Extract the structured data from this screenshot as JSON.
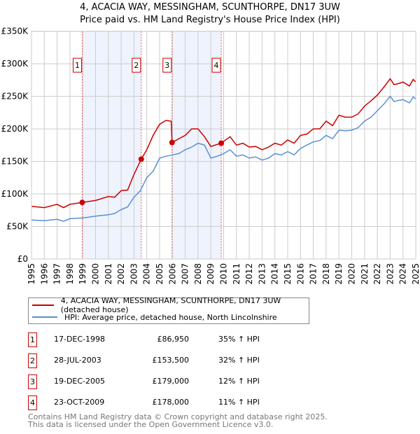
{
  "title": "4, ACACIA WAY, MESSINGHAM, SCUNTHORPE, DN17 3UW",
  "subtitle": "Price paid vs. HM Land Registry's House Price Index (HPI)",
  "colors": {
    "property": "#cc0000",
    "hpi": "#5b8fd4",
    "shade": "#eef3fd",
    "grid": "#cccccc"
  },
  "chart_data": {
    "type": "line",
    "title": "4, ACACIA WAY, MESSINGHAM, SCUNTHORPE, DN17 3UW",
    "xlim": [
      1995,
      2025
    ],
    "ylim": [
      0,
      350000
    ],
    "yticks": [
      {
        "v": 0,
        "label": "£0"
      },
      {
        "v": 50000,
        "label": "£50K"
      },
      {
        "v": 100000,
        "label": "£100K"
      },
      {
        "v": 150000,
        "label": "£150K"
      },
      {
        "v": 200000,
        "label": "£200K"
      },
      {
        "v": 250000,
        "label": "£250K"
      },
      {
        "v": 300000,
        "label": "£300K"
      },
      {
        "v": 350000,
        "label": "£350K"
      }
    ],
    "xticks": [
      1995,
      1996,
      1997,
      1998,
      1999,
      2000,
      2001,
      2002,
      2003,
      2004,
      2005,
      2006,
      2007,
      2008,
      2009,
      2010,
      2011,
      2012,
      2013,
      2014,
      2015,
      2016,
      2017,
      2018,
      2019,
      2020,
      2021,
      2022,
      2023,
      2024,
      2025
    ],
    "series": [
      {
        "name": "4, ACACIA WAY, MESSINGHAM, SCUNTHORPE, DN17 3UW (detached house)",
        "color": "#cc0000",
        "x": [
          1995,
          1996,
          1997,
          1997.5,
          1998,
          1998.96,
          2000,
          2001,
          2001.5,
          2002,
          2002.5,
          2003,
          2003.57,
          2004,
          2004.5,
          2005,
          2005.5,
          2005.9,
          2005.97,
          2006.5,
          2007,
          2007.5,
          2008,
          2008.5,
          2009,
          2009.81,
          2010.5,
          2011,
          2011.5,
          2012,
          2012.5,
          2013,
          2013.5,
          2014,
          2014.5,
          2015,
          2015.5,
          2016,
          2016.5,
          2017,
          2017.5,
          2018,
          2018.5,
          2019,
          2019.5,
          2020,
          2020.5,
          2021,
          2021.5,
          2022,
          2022.5,
          2023,
          2023.3,
          2023.7,
          2024,
          2024.5,
          2024.8,
          2025
        ],
        "y": [
          81000,
          79000,
          84000,
          79000,
          84000,
          86950,
          90000,
          96000,
          95000,
          105000,
          106000,
          130000,
          153500,
          168000,
          190000,
          207000,
          213000,
          212000,
          179000,
          185000,
          190000,
          200000,
          200000,
          188000,
          173000,
          178000,
          188000,
          175000,
          178000,
          172000,
          173000,
          168000,
          172000,
          178000,
          175000,
          183000,
          178000,
          190000,
          192000,
          200000,
          200000,
          212000,
          205000,
          221000,
          218000,
          218000,
          223000,
          235000,
          243000,
          252000,
          264000,
          277000,
          268000,
          270000,
          272000,
          266000,
          276000,
          272000
        ]
      },
      {
        "name": "HPI: Average price, detached house, North Lincolnshire",
        "color": "#5b8fd4",
        "x": [
          1995,
          1996,
          1997,
          1997.5,
          1998,
          1999,
          2000,
          2001,
          2001.5,
          2002,
          2002.5,
          2003,
          2003.5,
          2004,
          2004.5,
          2005,
          2005.5,
          2006,
          2006.5,
          2007,
          2007.5,
          2008,
          2008.5,
          2009,
          2009.5,
          2010,
          2010.5,
          2011,
          2011.5,
          2012,
          2012.5,
          2013,
          2013.5,
          2014,
          2014.5,
          2015,
          2015.5,
          2016,
          2016.5,
          2017,
          2017.5,
          2018,
          2018.5,
          2019,
          2019.5,
          2020,
          2020.5,
          2021,
          2021.5,
          2022,
          2022.5,
          2023,
          2023.3,
          2023.7,
          2024,
          2024.5,
          2024.8,
          2025
        ],
        "y": [
          60000,
          59000,
          61000,
          58000,
          62000,
          63000,
          66000,
          68000,
          70000,
          76000,
          80000,
          95000,
          105000,
          125000,
          135000,
          155000,
          158000,
          160000,
          162000,
          168000,
          172000,
          178000,
          175000,
          155000,
          158000,
          162000,
          168000,
          158000,
          160000,
          155000,
          157000,
          152000,
          155000,
          162000,
          160000,
          165000,
          160000,
          170000,
          175000,
          180000,
          182000,
          190000,
          185000,
          198000,
          197000,
          198000,
          202000,
          212000,
          218000,
          228000,
          238000,
          250000,
          242000,
          244000,
          245000,
          240000,
          249000,
          246000
        ]
      }
    ],
    "sales": [
      {
        "n": "1",
        "x": 1998.96,
        "date": "17-DEC-1998",
        "price": 86950,
        "price_label": "£86,950",
        "hpi": "35% ↑ HPI"
      },
      {
        "n": "2",
        "x": 2003.57,
        "date": "28-JUL-2003",
        "price": 153500,
        "price_label": "£153,500",
        "hpi": "32% ↑ HPI"
      },
      {
        "n": "3",
        "x": 2005.97,
        "date": "19-DEC-2005",
        "price": 179000,
        "price_label": "£179,000",
        "hpi": "12% ↑ HPI"
      },
      {
        "n": "4",
        "x": 2009.81,
        "date": "23-OCT-2009",
        "price": 178000,
        "price_label": "£178,000",
        "hpi": "11% ↑ HPI"
      }
    ],
    "marker_label_value": 300000
  },
  "legend": {
    "property": "4, ACACIA WAY, MESSINGHAM, SCUNTHORPE, DN17 3UW (detached house)",
    "hpi": "HPI: Average price, detached house, North Lincolnshire"
  },
  "footer": {
    "line1": "Contains HM Land Registry data © Crown copyright and database right 2025.",
    "line2": "This data is licensed under the Open Government Licence v3.0."
  }
}
